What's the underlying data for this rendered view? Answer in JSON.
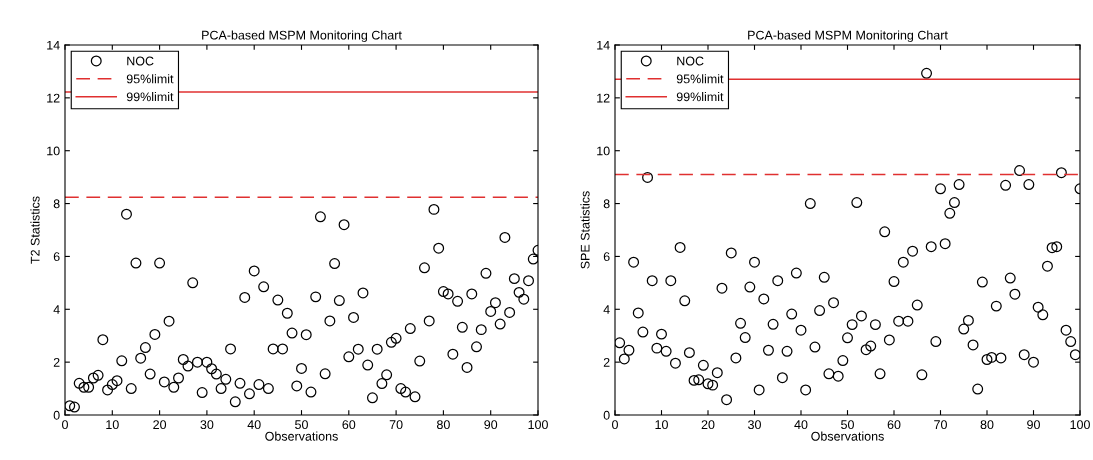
{
  "chart_data": [
    {
      "type": "scatter",
      "title": "PCA-based MSPM Monitoring Chart",
      "xlabel": "Observations",
      "ylabel": "T2 Statistics",
      "x": [
        1,
        2,
        3,
        4,
        5,
        6,
        7,
        8,
        9,
        10,
        11,
        12,
        13,
        14,
        15,
        16,
        17,
        18,
        19,
        20,
        21,
        22,
        23,
        24,
        25,
        26,
        27,
        28,
        29,
        30,
        31,
        32,
        33,
        34,
        35,
        36,
        37,
        38,
        39,
        40,
        41,
        42,
        43,
        44,
        45,
        46,
        47,
        48,
        49,
        50,
        51,
        52,
        53,
        54,
        55,
        56,
        57,
        58,
        59,
        60,
        61,
        62,
        63,
        64,
        65,
        66,
        67,
        68,
        69,
        70,
        71,
        72,
        73,
        74,
        75,
        76,
        77,
        78,
        79,
        80,
        81,
        82,
        83,
        84,
        85,
        86,
        87,
        88,
        89,
        90,
        91,
        92,
        93,
        94,
        95,
        96,
        97,
        98,
        99,
        100
      ],
      "series": [
        {
          "name": "NOC",
          "color": "#000000",
          "marker": "circle",
          "values": [
            0.35,
            0.3,
            1.2,
            1.05,
            1.05,
            1.4,
            1.5,
            2.85,
            0.95,
            1.15,
            1.3,
            2.05,
            7.6,
            1.0,
            5.75,
            2.15,
            2.55,
            1.55,
            3.05,
            5.75,
            1.25,
            3.55,
            1.05,
            1.4,
            2.1,
            1.85,
            5.0,
            2.0,
            0.85,
            2.0,
            1.75,
            1.55,
            1.0,
            1.35,
            2.5,
            0.5,
            1.2,
            4.45,
            0.8,
            5.45,
            1.15,
            4.85,
            1.0,
            2.5,
            4.35,
            2.5,
            3.85,
            3.1,
            1.1,
            1.76,
            3.04,
            0.87,
            4.47,
            7.5,
            1.56,
            3.56,
            5.73,
            4.33,
            7.2,
            2.2,
            3.69,
            2.49,
            4.62,
            1.89,
            0.65,
            2.49,
            1.19,
            1.52,
            2.75,
            2.9,
            1.0,
            0.87,
            3.27,
            0.69,
            2.04,
            5.57,
            3.56,
            7.78,
            6.31,
            4.67,
            4.58,
            2.3,
            4.3,
            3.32,
            1.8,
            4.58,
            2.58,
            3.23,
            5.36,
            3.92,
            4.25,
            3.44,
            6.72,
            3.88,
            5.16,
            4.64,
            4.38,
            5.08,
            5.9,
            6.23
          ]
        }
      ],
      "ref_lines": [
        {
          "axis": "y",
          "value": 8.24,
          "label": "95%limit",
          "color": "#e03030",
          "line_style": "dashed"
        },
        {
          "axis": "y",
          "value": 12.22,
          "label": "99%limit",
          "color": "#e03030",
          "line_style": "solid"
        }
      ],
      "xlim": [
        0,
        100
      ],
      "xticks": [
        0,
        10,
        20,
        30,
        40,
        50,
        60,
        70,
        80,
        90,
        100
      ],
      "ylim": [
        0,
        14
      ],
      "yticks": [
        0,
        2,
        4,
        6,
        8,
        10,
        12,
        14
      ],
      "grid": false,
      "legend": "top left"
    },
    {
      "type": "scatter",
      "title": "PCA-based MSPM Monitoring Chart",
      "xlabel": "Observations",
      "ylabel": "SPE Statistics",
      "x": [
        1,
        2,
        3,
        4,
        5,
        6,
        7,
        8,
        9,
        10,
        11,
        12,
        13,
        14,
        15,
        16,
        17,
        18,
        19,
        20,
        21,
        22,
        23,
        24,
        25,
        26,
        27,
        28,
        29,
        30,
        31,
        32,
        33,
        34,
        35,
        36,
        37,
        38,
        39,
        40,
        41,
        42,
        43,
        44,
        45,
        46,
        47,
        48,
        49,
        50,
        51,
        52,
        53,
        54,
        55,
        56,
        57,
        58,
        59,
        60,
        61,
        62,
        63,
        64,
        65,
        66,
        67,
        68,
        69,
        70,
        71,
        72,
        73,
        74,
        75,
        76,
        77,
        78,
        79,
        80,
        81,
        82,
        83,
        84,
        85,
        86,
        87,
        88,
        89,
        90,
        91,
        92,
        93,
        94,
        95,
        96,
        97,
        98,
        99,
        100
      ],
      "series": [
        {
          "name": "NOC",
          "color": "#000000",
          "marker": "circle",
          "values": [
            2.73,
            2.12,
            2.45,
            5.78,
            3.86,
            3.14,
            8.99,
            5.08,
            2.53,
            3.06,
            2.41,
            5.08,
            1.96,
            6.34,
            4.32,
            2.36,
            1.31,
            1.33,
            1.88,
            1.18,
            1.13,
            1.6,
            4.8,
            0.58,
            6.13,
            2.16,
            3.47,
            2.93,
            4.84,
            5.78,
            0.95,
            4.39,
            2.45,
            3.43,
            5.08,
            1.41,
            2.41,
            3.82,
            5.37,
            3.21,
            0.95,
            8.0,
            2.57,
            3.95,
            5.21,
            1.56,
            4.25,
            1.47,
            2.06,
            2.92,
            3.42,
            8.04,
            3.75,
            2.47,
            2.61,
            3.42,
            1.56,
            6.93,
            2.84,
            5.05,
            3.55,
            5.78,
            3.55,
            6.2,
            4.16,
            1.52,
            12.93,
            6.37,
            2.78,
            8.56,
            6.48,
            7.63,
            8.04,
            8.72,
            3.25,
            3.58,
            2.65,
            0.98,
            5.03,
            2.1,
            2.18,
            4.12,
            2.16,
            8.69,
            5.18,
            4.57,
            9.25,
            2.28,
            8.72,
            2.0,
            4.08,
            3.79,
            5.63,
            6.33,
            6.37,
            9.17,
            3.21,
            2.78,
            2.28,
            8.56
          ]
        }
      ],
      "ref_lines": [
        {
          "axis": "y",
          "value": 9.1,
          "label": "95%limit",
          "color": "#e03030",
          "line_style": "dashed"
        },
        {
          "axis": "y",
          "value": 12.7,
          "label": "99%limit",
          "color": "#e03030",
          "line_style": "solid"
        }
      ],
      "xlim": [
        0,
        100
      ],
      "xticks": [
        0,
        10,
        20,
        30,
        40,
        50,
        60,
        70,
        80,
        90,
        100
      ],
      "ylim": [
        0,
        14
      ],
      "yticks": [
        0,
        2,
        4,
        6,
        8,
        10,
        12,
        14
      ],
      "grid": false,
      "legend": "top left"
    }
  ]
}
